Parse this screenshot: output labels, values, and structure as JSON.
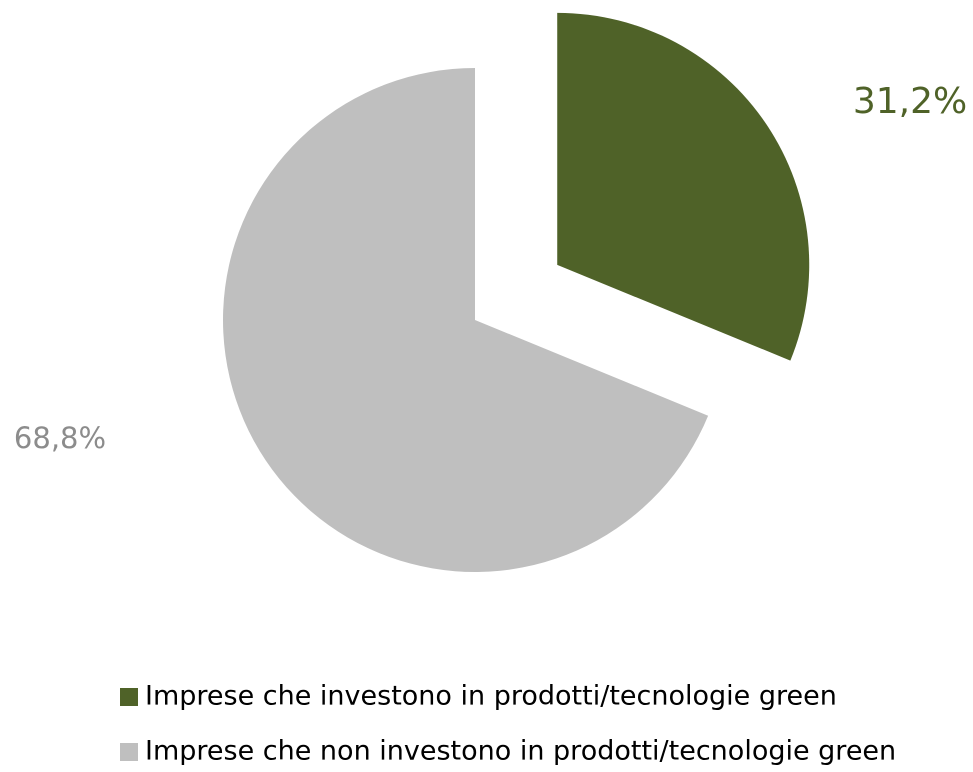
{
  "chart_data": {
    "type": "pie",
    "categories": [
      "Imprese che investono in prodotti/tecnologie green",
      "Imprese che non investono in prodotti/tecnologie green"
    ],
    "values": [
      31.2,
      68.8
    ],
    "value_labels": [
      "31,2%",
      "68,8%"
    ],
    "colors": [
      "#4f6228",
      "#bfbfbf"
    ],
    "explode": [
      true,
      false
    ],
    "legend": "bottom"
  }
}
